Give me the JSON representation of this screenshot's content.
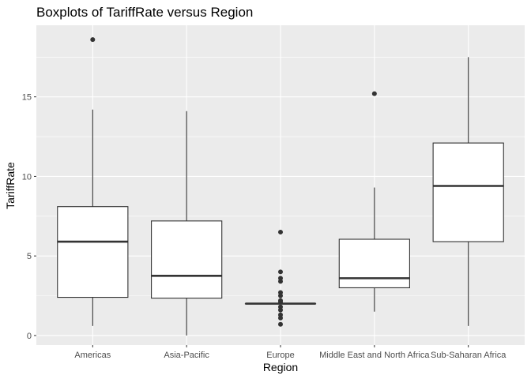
{
  "chart_data": {
    "type": "boxplot",
    "title": "Boxplots of TariffRate versus Region",
    "xlabel": "Region",
    "ylabel": "TariffRate",
    "ylim": [
      -0.6,
      19.5
    ],
    "yticks": [
      0,
      5,
      10,
      15
    ],
    "grid": true,
    "categories": [
      "Americas",
      "Asia-Pacific",
      "Europe",
      "Middle East and North Africa",
      "Sub-Saharan Africa"
    ],
    "boxes": [
      {
        "category": "Americas",
        "min": 0.6,
        "q1": 2.4,
        "median": 5.9,
        "q3": 8.1,
        "max": 14.2,
        "outliers": [
          18.6
        ]
      },
      {
        "category": "Asia-Pacific",
        "min": 0.0,
        "q1": 2.35,
        "median": 3.75,
        "q3": 7.2,
        "max": 14.1,
        "outliers": []
      },
      {
        "category": "Europe",
        "min": 2.0,
        "q1": 2.0,
        "median": 2.0,
        "q3": 2.0,
        "max": 2.0,
        "outliers": [
          6.5,
          4.0,
          3.6,
          3.4,
          2.7,
          2.5,
          2.2,
          2.1,
          1.8,
          1.6,
          1.3,
          1.1,
          0.7
        ]
      },
      {
        "category": "Middle East and North Africa",
        "min": 1.5,
        "q1": 3.0,
        "median": 3.6,
        "q3": 6.05,
        "max": 9.3,
        "outliers": [
          15.2
        ]
      },
      {
        "category": "Sub-Saharan Africa",
        "min": 0.6,
        "q1": 5.9,
        "median": 9.4,
        "q3": 12.1,
        "max": 17.5,
        "outliers": []
      }
    ],
    "colors": {
      "panel": "#ebebeb",
      "grid_major": "#ffffff",
      "box_fill": "#ffffff",
      "box_stroke": "#333333",
      "text": "#4d4d4d"
    }
  }
}
